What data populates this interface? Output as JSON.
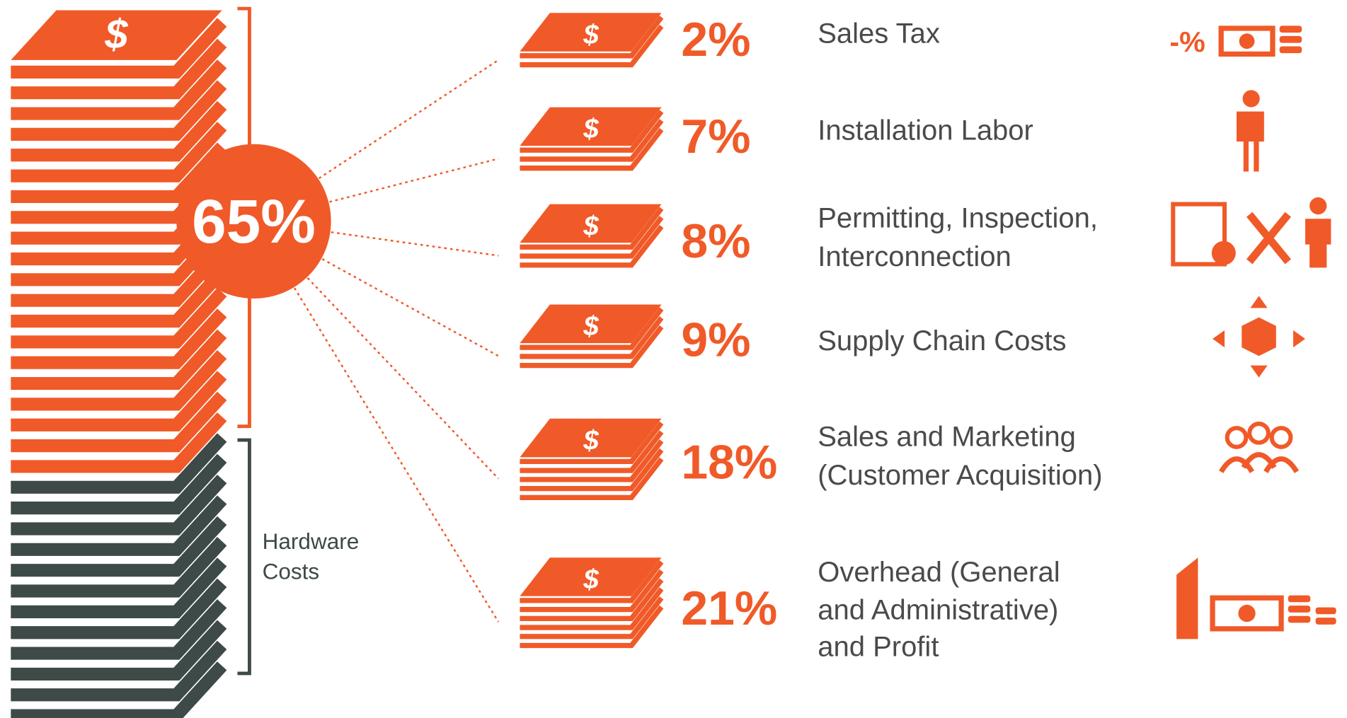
{
  "center_label": "65%",
  "bracket_label": [
    "Hardware",
    "Costs"
  ],
  "items": [
    {
      "percent": "2%",
      "label": [
        "Sales Tax"
      ]
    },
    {
      "percent": "7%",
      "label": [
        "Installation Labor"
      ]
    },
    {
      "percent": "8%",
      "label": [
        "Permitting, Inspection,",
        "Interconnection"
      ]
    },
    {
      "percent": "9%",
      "label": [
        "Supply Chain Costs"
      ]
    },
    {
      "percent": "18%",
      "label": [
        "Sales and Marketing",
        "(Customer Acquisition)"
      ]
    },
    {
      "percent": "21%",
      "label": [
        "Overhead (General",
        "and Administrative)",
        "and Profit"
      ]
    }
  ]
}
